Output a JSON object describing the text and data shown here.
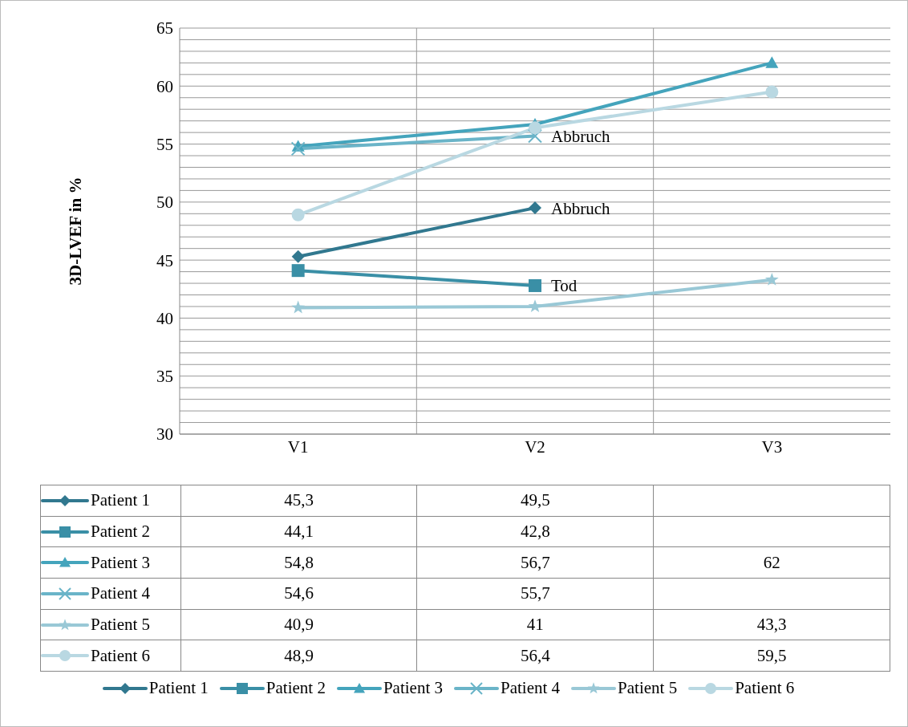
{
  "chart_data": {
    "type": "line",
    "ylabel": "3D-LVEF in %",
    "categories": [
      "V1",
      "V2",
      "V3"
    ],
    "ylim": [
      30,
      65
    ],
    "yticks": [
      30,
      {
        "value": 31,
        "label": null
      },
      {
        "value": 32,
        "label": null
      },
      {
        "value": 33,
        "label": null
      },
      {
        "value": 34,
        "label": null
      },
      35,
      {
        "value": 36,
        "label": null
      },
      {
        "value": 37,
        "label": null
      },
      {
        "value": 38,
        "label": null
      },
      {
        "value": 39,
        "label": null
      },
      40,
      {
        "value": 41,
        "label": null
      },
      {
        "value": 42,
        "label": null
      },
      {
        "value": 43,
        "label": null
      },
      {
        "value": 44,
        "label": null
      },
      45,
      {
        "value": 46,
        "label": null
      },
      {
        "value": 47,
        "label": null
      },
      {
        "value": 48,
        "label": null
      },
      {
        "value": 49,
        "label": null
      },
      50,
      {
        "value": 51,
        "label": null
      },
      {
        "value": 52,
        "label": null
      },
      {
        "value": 53,
        "label": null
      },
      {
        "value": 54,
        "label": null
      },
      55,
      {
        "value": 56,
        "label": null
      },
      {
        "value": 57,
        "label": null
      },
      {
        "value": 58,
        "label": null
      },
      {
        "value": 59,
        "label": null
      },
      60,
      {
        "value": 61,
        "label": null
      },
      {
        "value": 62,
        "label": null
      },
      {
        "value": 63,
        "label": null
      },
      {
        "value": 64,
        "label": null
      },
      65
    ],
    "grid": true,
    "legend": "bottom",
    "series": [
      {
        "name": "Patient 1",
        "color": "#31788f",
        "marker": "diamond",
        "values": [
          45.3,
          49.5,
          null
        ],
        "value_labels": [
          "45,3",
          "49,5",
          null
        ]
      },
      {
        "name": "Patient 2",
        "color": "#3a8fa6",
        "marker": "square",
        "values": [
          44.1,
          42.8,
          null
        ],
        "value_labels": [
          "44,1",
          "42,8",
          null
        ]
      },
      {
        "name": "Patient 3",
        "color": "#44a4bc",
        "marker": "triangle",
        "values": [
          54.8,
          56.7,
          62
        ],
        "value_labels": [
          "54,8",
          "56,7",
          "62"
        ]
      },
      {
        "name": "Patient 4",
        "color": "#6ab4c8",
        "marker": "cross",
        "values": [
          54.6,
          55.7,
          null
        ],
        "value_labels": [
          "54,6",
          "55,7",
          null
        ]
      },
      {
        "name": "Patient 5",
        "color": "#99c8d6",
        "marker": "star",
        "values": [
          40.9,
          41,
          43.3
        ],
        "value_labels": [
          "40,9",
          "41",
          "43,3"
        ]
      },
      {
        "name": "Patient 6",
        "color": "#b9d8e2",
        "marker": "circle",
        "values": [
          48.9,
          56.4,
          59.5
        ],
        "value_labels": [
          "48,9",
          "56,4",
          "59,5"
        ]
      }
    ],
    "annotations": [
      {
        "text": "Abbruch",
        "x": "V2",
        "y": 55.7
      },
      {
        "text": "Abbruch",
        "x": "V2",
        "y": 49.5
      },
      {
        "text": "Tod",
        "x": "V2",
        "y": 42.8
      }
    ]
  }
}
